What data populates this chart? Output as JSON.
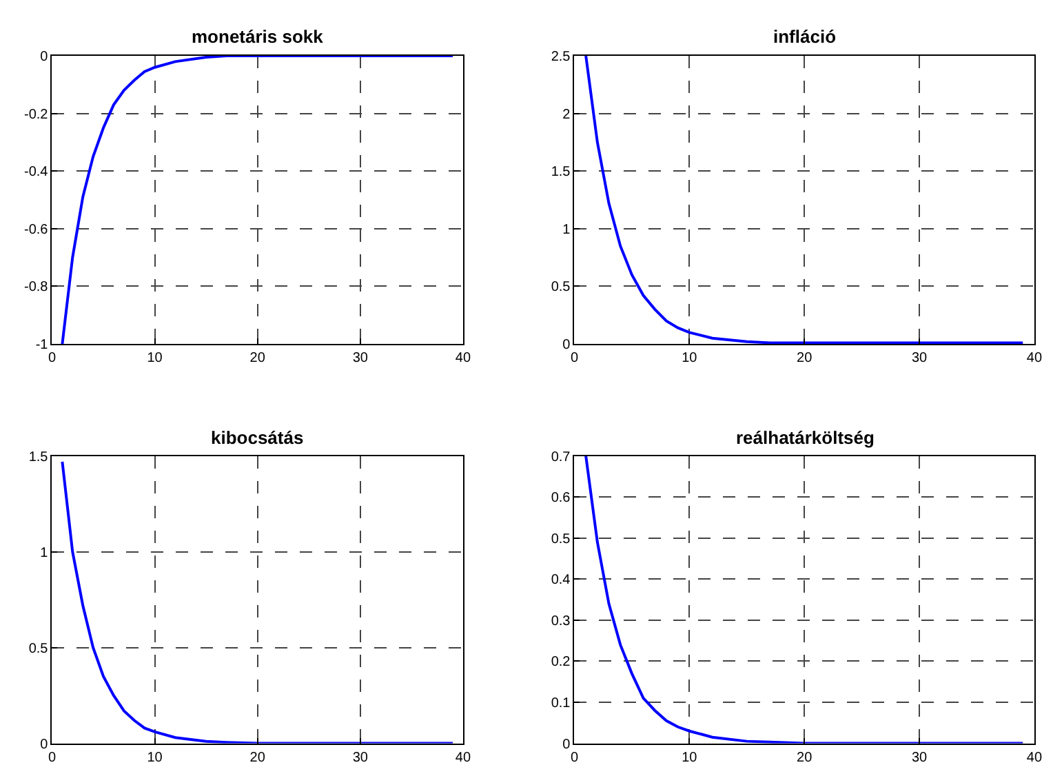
{
  "chart_data": [
    {
      "type": "line",
      "title": "monetáris sokk",
      "x": [
        1,
        2,
        3,
        4,
        5,
        6,
        7,
        8,
        9,
        10,
        12,
        15,
        17,
        20,
        30,
        39
      ],
      "series": [
        {
          "color": "#0000ff",
          "values": [
            -1,
            -0.7,
            -0.49,
            -0.35,
            -0.25,
            -0.17,
            -0.12,
            -0.085,
            -0.055,
            -0.04,
            -0.02,
            -0.005,
            0,
            0,
            0,
            0
          ]
        }
      ],
      "xlim": [
        0,
        40
      ],
      "xticks": [
        0,
        10,
        20,
        30,
        40
      ],
      "ylim": [
        -1,
        0
      ],
      "yticks": [
        -1,
        -0.8,
        -0.6,
        -0.4,
        -0.2,
        0
      ],
      "grid": true,
      "line_style": "solid"
    },
    {
      "type": "line",
      "title": "infláció",
      "x": [
        1,
        2,
        3,
        4,
        5,
        6,
        7,
        8,
        9,
        10,
        12,
        15,
        17,
        20,
        30,
        39
      ],
      "series": [
        {
          "color": "#0000ff",
          "values": [
            2.5,
            1.75,
            1.22,
            0.85,
            0.6,
            0.42,
            0.3,
            0.2,
            0.14,
            0.1,
            0.05,
            0.02,
            0.01,
            0.01,
            0.01,
            0.01
          ]
        }
      ],
      "xlim": [
        0,
        40
      ],
      "xticks": [
        0,
        10,
        20,
        30,
        40
      ],
      "ylim": [
        0,
        2.5
      ],
      "yticks": [
        0,
        0.5,
        1,
        1.5,
        2,
        2.5
      ],
      "grid": true,
      "line_style": "solid"
    },
    {
      "type": "line",
      "title": "kibocsátás",
      "x": [
        1,
        2,
        3,
        4,
        5,
        6,
        7,
        8,
        9,
        10,
        12,
        15,
        17,
        20,
        30,
        39
      ],
      "series": [
        {
          "color": "#0000ff",
          "values": [
            1.47,
            1.0,
            0.72,
            0.5,
            0.35,
            0.25,
            0.17,
            0.12,
            0.08,
            0.06,
            0.03,
            0.01,
            0.005,
            0,
            0,
            0
          ]
        }
      ],
      "xlim": [
        0,
        40
      ],
      "xticks": [
        0,
        10,
        20,
        30,
        40
      ],
      "ylim": [
        0,
        1.5
      ],
      "yticks": [
        0,
        0.5,
        1,
        1.5
      ],
      "grid": true,
      "line_style": "solid"
    },
    {
      "type": "line",
      "title": "reálhatárköltség",
      "x": [
        1,
        2,
        3,
        4,
        5,
        6,
        7,
        8,
        9,
        10,
        12,
        15,
        17,
        20,
        30,
        39
      ],
      "series": [
        {
          "color": "#0000ff",
          "values": [
            0.7,
            0.49,
            0.34,
            0.24,
            0.17,
            0.11,
            0.08,
            0.055,
            0.04,
            0.03,
            0.015,
            0.005,
            0.003,
            0,
            0,
            0
          ]
        }
      ],
      "xlim": [
        0,
        40
      ],
      "xticks": [
        0,
        10,
        20,
        30,
        40
      ],
      "ylim": [
        0,
        0.7
      ],
      "yticks": [
        0,
        0.1,
        0.2,
        0.3,
        0.4,
        0.5,
        0.6,
        0.7
      ],
      "grid": true,
      "line_style": "solid"
    }
  ]
}
